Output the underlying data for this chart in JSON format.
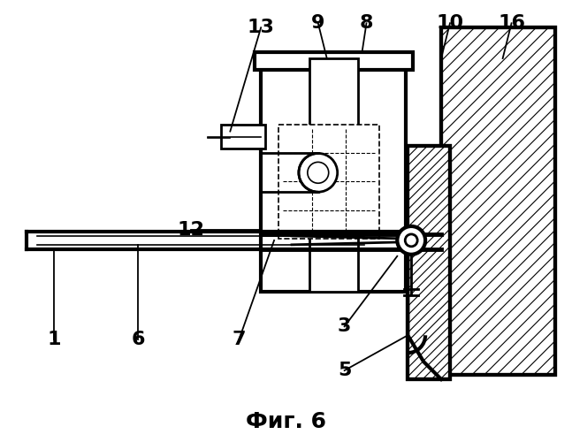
{
  "title": "Фиг. 6",
  "title_fontsize": 18,
  "background_color": "#ffffff",
  "line_color": "#000000",
  "label_fontsize": 16,
  "label_fontweight": "bold",
  "figsize": [
    6.47,
    5.0
  ],
  "dpi": 100
}
